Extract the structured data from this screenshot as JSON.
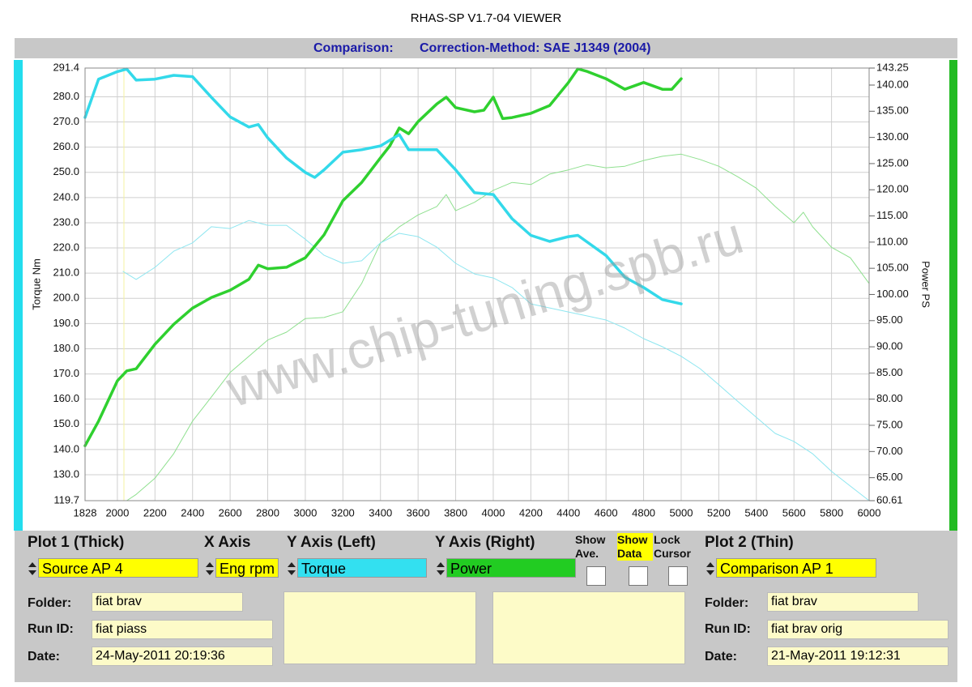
{
  "window_title": "RHAS-SP V1.7-04  VIEWER",
  "header": {
    "comparison": "Comparison:",
    "correction": "Correction-Method: SAE J1349 (2004)"
  },
  "watermark": "www.chip-tuning.spb.ru",
  "chart_data": {
    "type": "line",
    "y_label": "Torque Nm",
    "y2_label": "Power PS",
    "xlim": [
      1828,
      6000
    ],
    "xticks": [
      1828,
      2000,
      2200,
      2400,
      2600,
      2800,
      3000,
      3200,
      3400,
      3600,
      3800,
      4000,
      4200,
      4400,
      4600,
      4800,
      5000,
      5200,
      5400,
      5600,
      5800,
      6000
    ],
    "ylim": [
      119.7,
      291.4
    ],
    "yticks": [
      119.7,
      {
        "value": 130,
        "label": "130.0"
      },
      {
        "value": 140,
        "label": "140.0"
      },
      {
        "value": 150,
        "label": "150.0"
      },
      {
        "value": 160,
        "label": "160.0"
      },
      {
        "value": 170,
        "label": "170.0"
      },
      {
        "value": 180,
        "label": "180.0"
      },
      {
        "value": 190,
        "label": "190.0"
      },
      {
        "value": 200,
        "label": "200.0"
      },
      {
        "value": 210,
        "label": "210.0"
      },
      {
        "value": 220,
        "label": "220.0"
      },
      {
        "value": 230,
        "label": "230.0"
      },
      {
        "value": 240,
        "label": "240.0"
      },
      {
        "value": 250,
        "label": "250.0"
      },
      {
        "value": 260,
        "label": "260.0"
      },
      {
        "value": 270,
        "label": "270.0"
      },
      {
        "value": 280,
        "label": "280.0"
      },
      291.4
    ],
    "y2lim": [
      60.61,
      143.25
    ],
    "y2ticks": [
      60.61,
      {
        "value": 65,
        "label": "65.00"
      },
      {
        "value": 70,
        "label": "70.00"
      },
      {
        "value": 75,
        "label": "75.00"
      },
      {
        "value": 80,
        "label": "80.00"
      },
      {
        "value": 85,
        "label": "85.00"
      },
      {
        "value": 90,
        "label": "90.00"
      },
      {
        "value": 95,
        "label": "95.00"
      },
      {
        "value": 100,
        "label": "100.00"
      },
      {
        "value": 105,
        "label": "105.00"
      },
      {
        "value": 110,
        "label": "110.00"
      },
      {
        "value": 115,
        "label": "115.00"
      },
      {
        "value": 120,
        "label": "120.00"
      },
      {
        "value": 125,
        "label": "125.00"
      },
      {
        "value": 130,
        "label": "130.00"
      },
      {
        "value": 135,
        "label": "135.00"
      },
      {
        "value": 140,
        "label": "140.00"
      },
      143.25
    ],
    "grid": true,
    "series": [
      {
        "color": "#8fe08f",
        "width": 1,
        "axis": "y2",
        "x": [
          2050,
          2100,
          2200,
          2300,
          2400,
          2500,
          2600,
          2700,
          2800,
          2900,
          3000,
          3100,
          3200,
          3300,
          3400,
          3500,
          3600,
          3700,
          3750,
          3800,
          3900,
          4000,
          4100,
          4200,
          4300,
          4400,
          4500,
          4600,
          4700,
          4800,
          4900,
          5000,
          5100,
          5200,
          5300,
          5400,
          5500,
          5600,
          5650,
          5700,
          5800,
          5900,
          6000
        ],
        "values": [
          60.61,
          61.8,
          64.9,
          69.6,
          75.8,
          80.4,
          85.1,
          88.2,
          91.3,
          92.8,
          95.4,
          95.6,
          96.7,
          102.1,
          109.8,
          112.9,
          115.2,
          116.8,
          119.1,
          116,
          117.6,
          119.9,
          121.4,
          121,
          123,
          123.8,
          124.8,
          124.2,
          124.5,
          125.6,
          126.4,
          126.8,
          125.8,
          124.5,
          122.5,
          120.3,
          116.8,
          113.7,
          115.7,
          112.9,
          109,
          107,
          102.1
        ]
      },
      {
        "color": "#8ee6f0",
        "width": 1,
        "x": [
          2030,
          2100,
          2200,
          2300,
          2400,
          2500,
          2600,
          2700,
          2800,
          2900,
          3000,
          3100,
          3200,
          3300,
          3400,
          3500,
          3600,
          3700,
          3800,
          3900,
          4000,
          4100,
          4200,
          4300,
          4400,
          4500,
          4600,
          4700,
          4800,
          4900,
          5000,
          5100,
          5200,
          5300,
          5400,
          5500,
          5600,
          5700,
          5800,
          5900,
          6000
        ],
        "values": [
          210.7,
          207.5,
          212.3,
          218.7,
          222,
          228.4,
          227.7,
          230.9,
          229,
          229,
          223.5,
          217.1,
          213.9,
          214.9,
          222,
          225.8,
          224.5,
          220.3,
          213.9,
          209.7,
          208.1,
          204.3,
          197.8,
          196.2,
          194.6,
          193,
          191.4,
          188.2,
          184,
          180.8,
          177,
          172.1,
          165.7,
          159.2,
          152.8,
          146.4,
          143.2,
          138.3,
          131.3,
          125.5,
          119.7
        ]
      },
      {
        "color": "#2fd02f",
        "width": 3.5,
        "axis": "y2",
        "x": [
          1828,
          1900,
          2000,
          2050,
          2100,
          2200,
          2300,
          2400,
          2500,
          2600,
          2700,
          2750,
          2800,
          2900,
          3000,
          3100,
          3200,
          3300,
          3400,
          3450,
          3500,
          3550,
          3600,
          3700,
          3750,
          3800,
          3900,
          3950,
          4000,
          4050,
          4100,
          4200,
          4300,
          4400,
          4450,
          4500,
          4600,
          4700,
          4800,
          4900,
          4950,
          5000
        ],
        "values": [
          71.1,
          75.8,
          83.5,
          85.4,
          85.8,
          90.5,
          94.3,
          97.4,
          99.4,
          100.8,
          102.9,
          105.6,
          104.9,
          105.2,
          107,
          111.4,
          117.9,
          121.4,
          126.1,
          128.4,
          131.8,
          130.7,
          133,
          136.4,
          137.7,
          135.7,
          134.9,
          135.2,
          137.7,
          133.6,
          133.8,
          134.6,
          136.1,
          140.5,
          143.1,
          142.6,
          141.2,
          139.2,
          140.5,
          139.2,
          139.2,
          141.2
        ]
      },
      {
        "color": "#33d9ea",
        "width": 3.5,
        "x": [
          1828,
          1900,
          2000,
          2050,
          2100,
          2200,
          2300,
          2400,
          2500,
          2600,
          2700,
          2750,
          2800,
          2900,
          3000,
          3050,
          3100,
          3200,
          3300,
          3400,
          3500,
          3550,
          3700,
          3800,
          3900,
          4000,
          4100,
          4200,
          4300,
          4400,
          4450,
          4600,
          4700,
          4800,
          4900,
          5000
        ],
        "values": [
          271.8,
          287,
          290,
          291,
          286.6,
          287,
          288.5,
          288,
          279.8,
          272,
          268,
          269,
          263.7,
          255.7,
          250,
          248,
          251,
          258,
          259,
          260.5,
          265,
          259,
          259,
          251,
          241.9,
          241.2,
          231.6,
          225,
          222.6,
          224.5,
          225,
          217,
          208.4,
          204.3,
          199.5,
          197.8
        ]
      }
    ]
  },
  "controls": {
    "plot1_header": "Plot 1 (Thick)",
    "x_axis_header": "X Axis",
    "y_left_header": "Y Axis (Left)",
    "y_right_header": "Y Axis (Right)",
    "show_ave": "Show Ave.",
    "show_data": "Show Data",
    "lock_cursor": "Lock Cursor",
    "plot2_header": "Plot 2 (Thin)",
    "plot1_source": "Source AP 4",
    "x_axis": "Eng rpm",
    "y_left": "Torque",
    "y_right": "Power",
    "plot2_source": "Comparison AP 1"
  },
  "plot1": {
    "folder_label": "Folder:",
    "folder": "fiat brav",
    "run_label": "Run ID:",
    "run": "fiat piass",
    "date_label": "Date:",
    "date": "24-May-2011  20:19:36"
  },
  "plot2": {
    "folder_label": "Folder:",
    "folder": "fiat brav",
    "run_label": "Run ID:",
    "run": "fiat brav orig",
    "date_label": "Date:",
    "date": "21-May-2011  19:12:31"
  }
}
